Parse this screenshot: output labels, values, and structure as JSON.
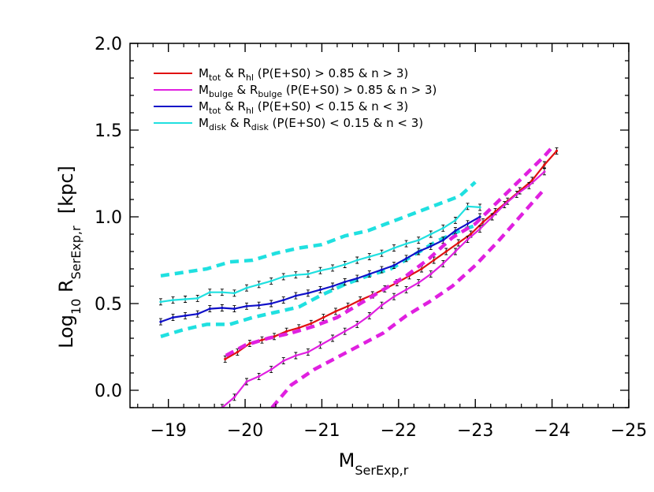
{
  "chart_data": {
    "type": "line",
    "xlabel": {
      "main": "M",
      "sub": "SerExp,r"
    },
    "ylabel": {
      "pre": "Log",
      "pre_sub": "10",
      "main": " R",
      "sub": "SerExp,r",
      "post": "  [kpc]"
    },
    "xlim": [
      -18.5,
      -25
    ],
    "ylim": [
      -0.1,
      2.0
    ],
    "xticks": [
      -19,
      -20,
      -21,
      -22,
      -23,
      -24,
      -25
    ],
    "xtick_labels": [
      "−19",
      "−20",
      "−21",
      "−22",
      "−23",
      "−24",
      "−25"
    ],
    "yticks": [
      0.0,
      0.5,
      1.0,
      1.5,
      2.0
    ],
    "ytick_labels": [
      "0.0",
      "0.5",
      "1.0",
      "1.5",
      "2.0"
    ],
    "legend_position": "top-left",
    "legend": [
      {
        "color": "#e01010",
        "m": "M",
        "msub": "tot",
        "amp": " & ",
        "r": "R",
        "rsub": "hl",
        "cond": " (P(E+S0) > 0.85 & n > 3)"
      },
      {
        "color": "#e020e0",
        "m": "M",
        "msub": "bulge",
        "amp": " & ",
        "r": "R",
        "rsub": "bulge",
        "cond": " (P(E+S0) > 0.85 & n > 3)"
      },
      {
        "color": "#1010c8",
        "m": "M",
        "msub": "tot",
        "amp": " & ",
        "r": "R",
        "rsub": "hl",
        "cond": " (P(E+S0) < 0.15 & n < 3)"
      },
      {
        "color": "#20e0e0",
        "m": "M",
        "msub": "disk",
        "amp": " & ",
        "r": "R",
        "rsub": "disk",
        "cond": " (P(E+S0) < 0.15 & n < 3)"
      }
    ],
    "series": [
      {
        "color": "#20e0e0",
        "style": "solid",
        "errorbars": true,
        "x": [
          -18.9,
          -19.06,
          -19.22,
          -19.38,
          -19.54,
          -19.7,
          -19.86,
          -20.02,
          -20.18,
          -20.34,
          -20.5,
          -20.66,
          -20.82,
          -20.98,
          -21.14,
          -21.3,
          -21.46,
          -21.62,
          -21.78,
          -21.94,
          -22.1,
          -22.26,
          -22.42,
          -22.58,
          -22.74,
          -22.9,
          -23.06
        ],
        "y": [
          0.51,
          0.52,
          0.525,
          0.53,
          0.565,
          0.565,
          0.56,
          0.59,
          0.61,
          0.63,
          0.655,
          0.665,
          0.67,
          0.69,
          0.705,
          0.725,
          0.75,
          0.77,
          0.79,
          0.82,
          0.845,
          0.865,
          0.9,
          0.935,
          0.98,
          1.06,
          1.055
        ]
      },
      {
        "color": "#20e0e0",
        "style": "dashed",
        "errorbars": false,
        "x": [
          -18.9,
          -19.2,
          -19.5,
          -19.8,
          -20.1,
          -20.4,
          -20.7,
          -21.0,
          -21.3,
          -21.6,
          -21.9,
          -22.2,
          -22.5,
          -22.8,
          -23.0
        ],
        "y": [
          0.66,
          0.68,
          0.7,
          0.74,
          0.75,
          0.79,
          0.82,
          0.84,
          0.89,
          0.92,
          0.97,
          1.02,
          1.07,
          1.12,
          1.2
        ]
      },
      {
        "color": "#20e0e0",
        "style": "dashed",
        "errorbars": false,
        "x": [
          -18.9,
          -19.2,
          -19.5,
          -19.8,
          -20.1,
          -20.4,
          -20.7,
          -21.0,
          -21.3,
          -21.6,
          -21.9,
          -22.2,
          -22.5,
          -22.8,
          -23.0
        ],
        "y": [
          0.31,
          0.35,
          0.38,
          0.38,
          0.42,
          0.45,
          0.48,
          0.55,
          0.61,
          0.66,
          0.7,
          0.78,
          0.86,
          0.92,
          0.95
        ]
      },
      {
        "color": "#1010c8",
        "style": "solid",
        "errorbars": true,
        "x": [
          -18.9,
          -19.06,
          -19.22,
          -19.38,
          -19.54,
          -19.7,
          -19.86,
          -20.02,
          -20.18,
          -20.34,
          -20.5,
          -20.66,
          -20.82,
          -20.98,
          -21.14,
          -21.3,
          -21.46,
          -21.62,
          -21.78,
          -21.94,
          -22.1,
          -22.26,
          -22.42,
          -22.58,
          -22.74,
          -22.9,
          -23.06
        ],
        "y": [
          0.395,
          0.42,
          0.43,
          0.44,
          0.47,
          0.475,
          0.47,
          0.485,
          0.49,
          0.5,
          0.52,
          0.545,
          0.56,
          0.58,
          0.6,
          0.625,
          0.645,
          0.67,
          0.695,
          0.72,
          0.76,
          0.8,
          0.83,
          0.865,
          0.92,
          0.96,
          1.0
        ]
      },
      {
        "color": "#e01010",
        "style": "solid",
        "errorbars": true,
        "x": [
          -19.74,
          -19.9,
          -20.06,
          -20.22,
          -20.38,
          -20.54,
          -20.7,
          -20.86,
          -21.02,
          -21.18,
          -21.34,
          -21.5,
          -21.66,
          -21.82,
          -21.98,
          -22.14,
          -22.3,
          -22.46,
          -22.62,
          -22.78,
          -22.94,
          -23.1,
          -23.26,
          -23.42,
          -23.58,
          -23.74,
          -23.9,
          -24.06
        ],
        "y": [
          0.18,
          0.22,
          0.27,
          0.29,
          0.31,
          0.34,
          0.36,
          0.385,
          0.42,
          0.455,
          0.485,
          0.52,
          0.55,
          0.585,
          0.62,
          0.66,
          0.7,
          0.75,
          0.8,
          0.85,
          0.9,
          0.97,
          1.03,
          1.09,
          1.15,
          1.21,
          1.3,
          1.38
        ]
      },
      {
        "color": "#e020e0",
        "style": "solid",
        "errorbars": true,
        "x": [
          -19.7,
          -19.86,
          -20.02,
          -20.18,
          -20.34,
          -20.5,
          -20.66,
          -20.82,
          -20.98,
          -21.14,
          -21.3,
          -21.46,
          -21.62,
          -21.78,
          -21.94,
          -22.1,
          -22.26,
          -22.42,
          -22.58,
          -22.74,
          -22.9,
          -23.06,
          -23.22,
          -23.38,
          -23.54,
          -23.7,
          -23.9
        ],
        "y": [
          -0.1,
          -0.04,
          0.05,
          0.08,
          0.12,
          0.17,
          0.2,
          0.22,
          0.26,
          0.3,
          0.34,
          0.38,
          0.43,
          0.49,
          0.54,
          0.58,
          0.62,
          0.67,
          0.73,
          0.8,
          0.87,
          0.93,
          1.0,
          1.07,
          1.13,
          1.18,
          1.26
        ]
      },
      {
        "color": "#e020e0",
        "style": "dashed",
        "errorbars": false,
        "x": [
          -19.75,
          -20.0,
          -20.3,
          -20.6,
          -20.9,
          -21.2,
          -21.5,
          -21.8,
          -22.1,
          -22.4,
          -22.7,
          -23.0,
          -23.3,
          -23.6,
          -23.9,
          -24.0
        ],
        "y": [
          0.2,
          0.26,
          0.3,
          0.33,
          0.37,
          0.42,
          0.5,
          0.58,
          0.66,
          0.76,
          0.88,
          0.96,
          1.09,
          1.22,
          1.35,
          1.4
        ]
      },
      {
        "color": "#e020e0",
        "style": "dashed",
        "errorbars": false,
        "x": [
          -20.35,
          -20.6,
          -20.9,
          -21.2,
          -21.5,
          -21.8,
          -22.1,
          -22.4,
          -22.7,
          -23.0,
          -23.3,
          -23.6,
          -23.9
        ],
        "y": [
          -0.1,
          0.03,
          0.12,
          0.19,
          0.26,
          0.33,
          0.43,
          0.51,
          0.6,
          0.72,
          0.86,
          1.01,
          1.16
        ]
      }
    ]
  }
}
